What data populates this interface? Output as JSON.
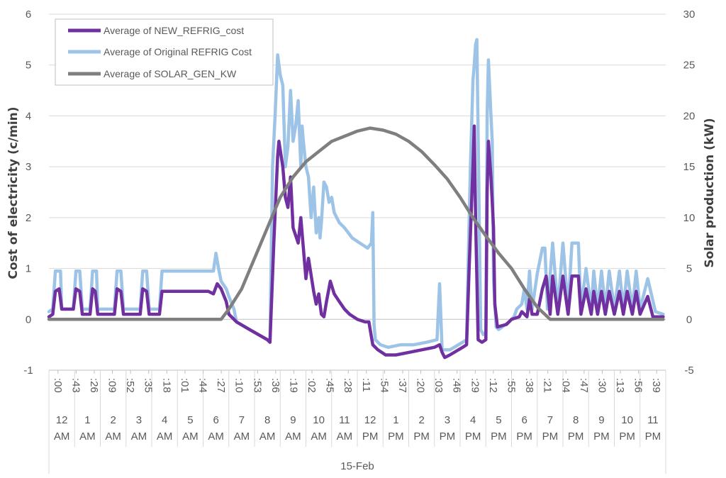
{
  "chart_data": {
    "type": "line",
    "title": "",
    "ylabel": "Cost of electricity (c/min)",
    "y2label": "Solar production (kW)",
    "ylim": [
      -1,
      6
    ],
    "y2lim": [
      -5,
      30
    ],
    "yticks": [
      "-1",
      "0",
      "1",
      "2",
      "3",
      "4",
      "5",
      "6"
    ],
    "y2ticks": [
      "-5",
      "0",
      "5",
      "10",
      "15",
      "20",
      "25",
      "30"
    ],
    "minute_labels": [
      ":00",
      ":43",
      ":26",
      ":09",
      ":52",
      ":35",
      ":18",
      ":01",
      ":44",
      ":27",
      ":10",
      ":53",
      ":36",
      ":19",
      ":02",
      ":45",
      ":28",
      ":11",
      ":54",
      ":37",
      ":20",
      ":03",
      ":46",
      ":29",
      ":12",
      ":55",
      ":38",
      ":21",
      ":04",
      ":47",
      ":30",
      ":13",
      ":56",
      ":39"
    ],
    "hour_numbers": [
      "12",
      "1",
      "2",
      "3",
      "4",
      "5",
      "6",
      "7",
      "8",
      "9",
      "10",
      "11",
      "12",
      "1",
      "2",
      "3",
      "4",
      "5",
      "6",
      "7",
      "8",
      "9",
      "10",
      "11"
    ],
    "hour_ampm": [
      "AM",
      "AM",
      "AM",
      "AM",
      "AM",
      "AM",
      "AM",
      "AM",
      "AM",
      "AM",
      "AM",
      "AM",
      "PM",
      "PM",
      "PM",
      "PM",
      "PM",
      "PM",
      "PM",
      "PM",
      "PM",
      "PM",
      "PM",
      "PM"
    ],
    "date_label": "15-Feb",
    "legend_position": "top-left",
    "grid": true,
    "series": [
      {
        "name": "Average of NEW_REFRIG_cost",
        "axis": "left",
        "color": "#7030A0",
        "points": [
          [
            0,
            0.05
          ],
          [
            0.15,
            0.1
          ],
          [
            0.25,
            0.55
          ],
          [
            0.4,
            0.6
          ],
          [
            0.5,
            0.2
          ],
          [
            0.95,
            0.2
          ],
          [
            1.05,
            0.6
          ],
          [
            1.2,
            0.55
          ],
          [
            1.3,
            0.1
          ],
          [
            1.6,
            0.1
          ],
          [
            1.7,
            0.6
          ],
          [
            1.8,
            0.55
          ],
          [
            1.9,
            0.1
          ],
          [
            2.55,
            0.1
          ],
          [
            2.65,
            0.6
          ],
          [
            2.8,
            0.55
          ],
          [
            2.9,
            0.1
          ],
          [
            3.55,
            0.1
          ],
          [
            3.65,
            0.6
          ],
          [
            3.8,
            0.55
          ],
          [
            3.9,
            0.1
          ],
          [
            4.3,
            0.1
          ],
          [
            4.4,
            0.55
          ],
          [
            5.5,
            0.55
          ],
          [
            6.2,
            0.55
          ],
          [
            6.4,
            0.5
          ],
          [
            6.55,
            0.7
          ],
          [
            6.7,
            0.6
          ],
          [
            6.9,
            0.35
          ],
          [
            7.0,
            0.1
          ],
          [
            7.3,
            -0.05
          ],
          [
            7.8,
            -0.2
          ],
          [
            8.5,
            -0.4
          ],
          [
            8.6,
            -0.45
          ],
          [
            8.75,
            1.5
          ],
          [
            8.9,
            3.2
          ],
          [
            8.95,
            3.5
          ],
          [
            9.1,
            3.0
          ],
          [
            9.2,
            2.4
          ],
          [
            9.3,
            2.2
          ],
          [
            9.4,
            2.8
          ],
          [
            9.5,
            1.8
          ],
          [
            9.7,
            1.5
          ],
          [
            9.8,
            2.0
          ],
          [
            10.0,
            0.8
          ],
          [
            10.1,
            1.2
          ],
          [
            10.3,
            0.55
          ],
          [
            10.4,
            0.3
          ],
          [
            10.5,
            0.5
          ],
          [
            10.55,
            0.3
          ],
          [
            10.6,
            0.1
          ],
          [
            10.7,
            0.05
          ],
          [
            10.8,
            0.35
          ],
          [
            10.95,
            0.75
          ],
          [
            11.1,
            0.5
          ],
          [
            11.3,
            0.35
          ],
          [
            11.5,
            0.2
          ],
          [
            11.7,
            0.1
          ],
          [
            12.0,
            0.0
          ],
          [
            12.3,
            -0.05
          ],
          [
            12.45,
            -0.05
          ],
          [
            12.5,
            -0.2
          ],
          [
            12.6,
            -0.5
          ],
          [
            12.8,
            -0.6
          ],
          [
            13.1,
            -0.7
          ],
          [
            13.5,
            -0.7
          ],
          [
            14.0,
            -0.65
          ],
          [
            14.5,
            -0.6
          ],
          [
            15.0,
            -0.55
          ],
          [
            15.2,
            -0.5
          ],
          [
            15.3,
            -0.65
          ],
          [
            15.4,
            -0.75
          ],
          [
            15.6,
            -0.7
          ],
          [
            16.1,
            -0.55
          ],
          [
            16.25,
            -0.5
          ],
          [
            16.35,
            1.0
          ],
          [
            16.5,
            3.0
          ],
          [
            16.55,
            3.8
          ],
          [
            16.6,
            2.0
          ],
          [
            16.7,
            -0.4
          ],
          [
            16.85,
            -0.45
          ],
          [
            17.0,
            -0.4
          ],
          [
            17.05,
            2.5
          ],
          [
            17.1,
            3.5
          ],
          [
            17.2,
            2.8
          ],
          [
            17.3,
            1.8
          ],
          [
            17.35,
            0.3
          ],
          [
            17.45,
            -0.15
          ],
          [
            17.8,
            -0.1
          ],
          [
            18.0,
            0.0
          ],
          [
            18.3,
            0.05
          ],
          [
            18.4,
            0.15
          ],
          [
            18.6,
            0.05
          ],
          [
            18.7,
            0.4
          ],
          [
            18.8,
            0.1
          ],
          [
            19.0,
            0.1
          ],
          [
            19.2,
            0.6
          ],
          [
            19.35,
            0.85
          ],
          [
            19.5,
            0.1
          ],
          [
            19.6,
            0.85
          ],
          [
            19.8,
            0.1
          ],
          [
            20.0,
            0.85
          ],
          [
            20.2,
            0.1
          ],
          [
            20.35,
            0.85
          ],
          [
            20.6,
            0.85
          ],
          [
            20.7,
            0.1
          ],
          [
            20.9,
            0.6
          ],
          [
            21.1,
            0.1
          ],
          [
            21.2,
            0.55
          ],
          [
            21.35,
            0.1
          ],
          [
            21.5,
            0.55
          ],
          [
            21.65,
            0.1
          ],
          [
            21.8,
            0.55
          ],
          [
            22.0,
            0.1
          ],
          [
            22.2,
            0.55
          ],
          [
            22.35,
            0.1
          ],
          [
            22.5,
            0.55
          ],
          [
            22.7,
            0.1
          ],
          [
            22.85,
            0.55
          ],
          [
            23.0,
            0.1
          ],
          [
            23.3,
            0.45
          ],
          [
            23.5,
            0.05
          ],
          [
            23.7,
            0.05
          ],
          [
            23.9,
            0.05
          ]
        ]
      },
      {
        "name": "Average of Original REFRIG Cost",
        "axis": "left",
        "color": "#9DC3E6",
        "points": [
          [
            0,
            0.15
          ],
          [
            0.15,
            0.2
          ],
          [
            0.25,
            0.95
          ],
          [
            0.45,
            0.95
          ],
          [
            0.5,
            0.2
          ],
          [
            0.95,
            0.2
          ],
          [
            1.05,
            0.95
          ],
          [
            1.2,
            0.95
          ],
          [
            1.3,
            0.2
          ],
          [
            1.6,
            0.2
          ],
          [
            1.7,
            0.95
          ],
          [
            1.85,
            0.95
          ],
          [
            1.9,
            0.2
          ],
          [
            2.55,
            0.2
          ],
          [
            2.65,
            0.95
          ],
          [
            2.8,
            0.95
          ],
          [
            2.9,
            0.2
          ],
          [
            3.55,
            0.2
          ],
          [
            3.65,
            0.95
          ],
          [
            3.8,
            0.95
          ],
          [
            3.9,
            0.2
          ],
          [
            4.3,
            0.2
          ],
          [
            4.4,
            0.95
          ],
          [
            5.0,
            0.95
          ],
          [
            5.5,
            0.95
          ],
          [
            6.0,
            0.95
          ],
          [
            6.2,
            0.95
          ],
          [
            6.4,
            0.95
          ],
          [
            6.5,
            1.3
          ],
          [
            6.6,
            1.0
          ],
          [
            6.7,
            0.75
          ],
          [
            6.9,
            0.6
          ],
          [
            7.0,
            0.45
          ],
          [
            7.2,
            0.2
          ],
          [
            7.3,
            -0.05
          ],
          [
            7.8,
            -0.2
          ],
          [
            8.5,
            -0.4
          ],
          [
            8.6,
            -0.45
          ],
          [
            8.7,
            3.0
          ],
          [
            8.8,
            4.0
          ],
          [
            8.9,
            5.2
          ],
          [
            9.0,
            4.8
          ],
          [
            9.1,
            4.6
          ],
          [
            9.2,
            3.0
          ],
          [
            9.3,
            3.4
          ],
          [
            9.4,
            4.5
          ],
          [
            9.5,
            3.5
          ],
          [
            9.6,
            3.8
          ],
          [
            9.7,
            4.3
          ],
          [
            9.8,
            3.0
          ],
          [
            9.85,
            3.8
          ],
          [
            9.9,
            3.5
          ],
          [
            10.0,
            3.0
          ],
          [
            10.1,
            2.8
          ],
          [
            10.2,
            2.0
          ],
          [
            10.3,
            2.6
          ],
          [
            10.4,
            1.7
          ],
          [
            10.5,
            2.0
          ],
          [
            10.55,
            1.6
          ],
          [
            10.6,
            1.9
          ],
          [
            10.7,
            2.7
          ],
          [
            10.8,
            2.6
          ],
          [
            10.9,
            2.3
          ],
          [
            11.0,
            2.4
          ],
          [
            11.1,
            2.1
          ],
          [
            11.3,
            1.9
          ],
          [
            11.5,
            1.8
          ],
          [
            11.8,
            1.6
          ],
          [
            12.1,
            1.5
          ],
          [
            12.4,
            1.4
          ],
          [
            12.55,
            1.5
          ],
          [
            12.6,
            2.1
          ],
          [
            12.65,
            -0.1
          ],
          [
            12.7,
            -0.4
          ],
          [
            12.9,
            -0.5
          ],
          [
            13.2,
            -0.55
          ],
          [
            13.7,
            -0.5
          ],
          [
            14.2,
            -0.5
          ],
          [
            14.7,
            -0.45
          ],
          [
            15.1,
            -0.4
          ],
          [
            15.2,
            0.7
          ],
          [
            15.3,
            -0.6
          ],
          [
            15.6,
            -0.6
          ],
          [
            16.1,
            -0.45
          ],
          [
            16.25,
            -0.4
          ],
          [
            16.3,
            0.8
          ],
          [
            16.4,
            3.0
          ],
          [
            16.5,
            4.7
          ],
          [
            16.55,
            5.0
          ],
          [
            16.6,
            5.4
          ],
          [
            16.65,
            5.5
          ],
          [
            16.7,
            3.6
          ],
          [
            16.8,
            -0.2
          ],
          [
            16.9,
            -0.3
          ],
          [
            17.0,
            -0.25
          ],
          [
            17.05,
            4.0
          ],
          [
            17.1,
            5.1
          ],
          [
            17.2,
            4.0
          ],
          [
            17.25,
            3.5
          ],
          [
            17.3,
            0.8
          ],
          [
            17.4,
            -0.15
          ],
          [
            17.5,
            -0.2
          ],
          [
            17.9,
            -0.05
          ],
          [
            18.1,
            0.05
          ],
          [
            18.2,
            0.2
          ],
          [
            18.4,
            0.3
          ],
          [
            18.5,
            0.6
          ],
          [
            18.6,
            0.2
          ],
          [
            18.7,
            0.95
          ],
          [
            18.8,
            0.2
          ],
          [
            19.0,
            0.9
          ],
          [
            19.2,
            1.4
          ],
          [
            19.3,
            1.4
          ],
          [
            19.4,
            0.2
          ],
          [
            19.6,
            1.5
          ],
          [
            19.8,
            0.2
          ],
          [
            20.0,
            1.5
          ],
          [
            20.2,
            0.2
          ],
          [
            20.35,
            1.5
          ],
          [
            20.6,
            1.5
          ],
          [
            20.7,
            0.2
          ],
          [
            20.9,
            1.0
          ],
          [
            21.1,
            0.2
          ],
          [
            21.2,
            0.95
          ],
          [
            21.35,
            0.2
          ],
          [
            21.5,
            0.95
          ],
          [
            21.65,
            0.2
          ],
          [
            21.8,
            0.95
          ],
          [
            22.0,
            0.2
          ],
          [
            22.2,
            0.95
          ],
          [
            22.35,
            0.2
          ],
          [
            22.5,
            0.95
          ],
          [
            22.7,
            0.2
          ],
          [
            22.85,
            0.95
          ],
          [
            23.0,
            0.2
          ],
          [
            23.3,
            0.8
          ],
          [
            23.6,
            0.15
          ],
          [
            23.9,
            0.1
          ]
        ]
      },
      {
        "name": "Average of SOLAR_GEN_KW",
        "axis": "right",
        "color": "#7F7F7F",
        "points": [
          [
            0,
            0
          ],
          [
            6.7,
            0
          ],
          [
            7.0,
            1
          ],
          [
            7.5,
            3
          ],
          [
            8.0,
            6
          ],
          [
            8.5,
            9
          ],
          [
            9.0,
            12
          ],
          [
            9.5,
            14
          ],
          [
            10.0,
            15.5
          ],
          [
            10.5,
            16.5
          ],
          [
            11.0,
            17.5
          ],
          [
            11.5,
            18.0
          ],
          [
            12.0,
            18.5
          ],
          [
            12.5,
            18.8
          ],
          [
            13.0,
            18.6
          ],
          [
            13.5,
            18.2
          ],
          [
            14.0,
            17.5
          ],
          [
            14.5,
            16.5
          ],
          [
            15.0,
            15.2
          ],
          [
            15.5,
            13.8
          ],
          [
            16.0,
            12.0
          ],
          [
            16.5,
            10.0
          ],
          [
            17.0,
            8.2
          ],
          [
            17.5,
            6.5
          ],
          [
            18.0,
            5.0
          ],
          [
            18.5,
            3.0
          ],
          [
            19.0,
            1.2
          ],
          [
            19.5,
            0
          ],
          [
            23.9,
            0
          ]
        ]
      }
    ]
  }
}
